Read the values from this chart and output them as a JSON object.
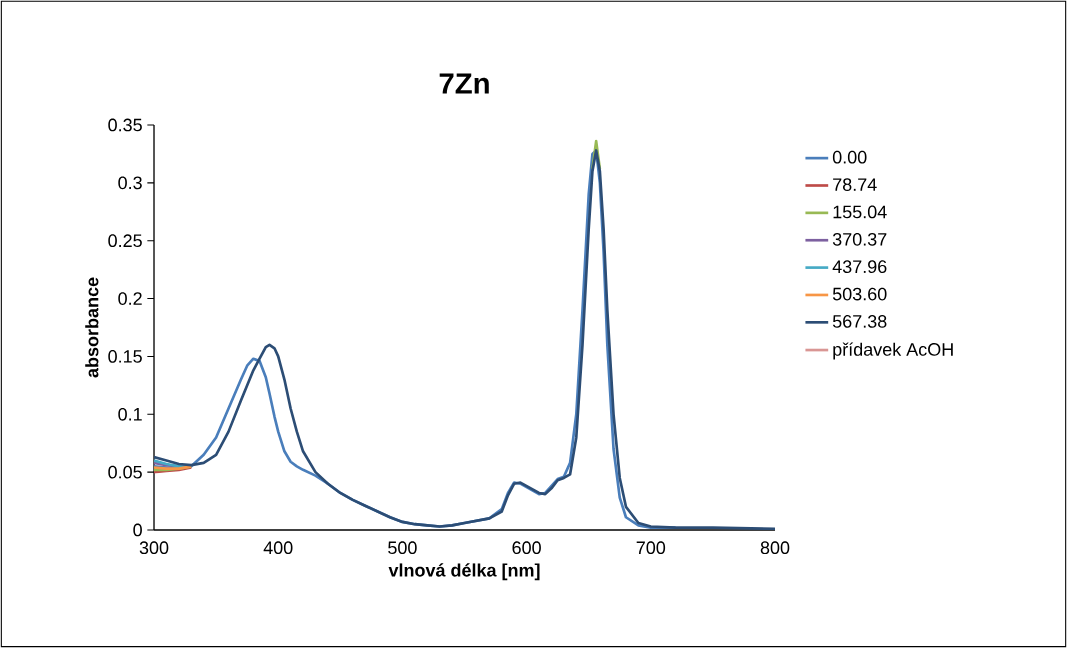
{
  "chart_data": {
    "type": "line",
    "title": "7Zn",
    "xlabel": "vlnová délka [nm]",
    "ylabel": "absorbance",
    "xlim": [
      300,
      800
    ],
    "ylim": [
      0,
      0.35
    ],
    "xticks": [
      300,
      400,
      500,
      600,
      700,
      800
    ],
    "yticks": [
      0,
      0.05,
      0.1,
      0.15,
      0.2,
      0.25,
      0.3,
      0.35
    ],
    "legend": "right",
    "x": [
      300,
      310,
      320,
      330,
      340,
      350,
      360,
      370,
      375,
      380,
      385,
      390,
      393,
      397,
      400,
      405,
      410,
      415,
      420,
      430,
      440,
      450,
      460,
      470,
      480,
      490,
      500,
      510,
      520,
      530,
      540,
      550,
      560,
      570,
      580,
      585,
      590,
      595,
      600,
      610,
      615,
      620,
      625,
      630,
      635,
      640,
      645,
      650,
      653,
      656,
      659,
      662,
      665,
      670,
      675,
      680,
      690,
      700,
      720,
      750,
      800
    ],
    "series": [
      {
        "name": "0.00",
        "color": "#4a7ebb",
        "values": [
          0.055,
          0.054,
          0.053,
          0.055,
          0.065,
          0.08,
          0.105,
          0.13,
          0.142,
          0.148,
          0.146,
          0.132,
          0.118,
          0.098,
          0.085,
          0.068,
          0.059,
          0.055,
          0.052,
          0.047,
          0.04,
          0.032,
          0.026,
          0.021,
          0.016,
          0.011,
          0.007,
          0.005,
          0.004,
          0.003,
          0.004,
          0.006,
          0.008,
          0.01,
          0.018,
          0.032,
          0.041,
          0.04,
          0.037,
          0.031,
          0.032,
          0.038,
          0.044,
          0.046,
          0.058,
          0.1,
          0.19,
          0.29,
          0.325,
          0.328,
          0.3,
          0.24,
          0.16,
          0.07,
          0.028,
          0.011,
          0.004,
          0.002,
          0.002,
          null,
          null
        ]
      },
      {
        "name": "78.74",
        "color": "#be4b48",
        "values": [
          0.05,
          0.051,
          0.052,
          0.054,
          null,
          null,
          null,
          null,
          null,
          null,
          null,
          null,
          null,
          null,
          null,
          null,
          null,
          null,
          null,
          null,
          null,
          null,
          null,
          null,
          null,
          null,
          null,
          null,
          null,
          null,
          null,
          null,
          null,
          null,
          null,
          null,
          null,
          null,
          null,
          null,
          null,
          null,
          null,
          null,
          null,
          null,
          null,
          null,
          null,
          null,
          null,
          null,
          null,
          null,
          null,
          null,
          null,
          null,
          null,
          null,
          null
        ]
      },
      {
        "name": "155.04",
        "color": "#98b954",
        "values": [
          0.052,
          0.052,
          0.053,
          0.055,
          null,
          null,
          null,
          null,
          null,
          null,
          null,
          null,
          null,
          null,
          null,
          null,
          null,
          null,
          null,
          null,
          null,
          null,
          null,
          null,
          null,
          null,
          null,
          null,
          null,
          null,
          null,
          null,
          null,
          null,
          null,
          null,
          null,
          null,
          null,
          null,
          null,
          null,
          null,
          null,
          null,
          null,
          null,
          null,
          0.312,
          0.336,
          0.312,
          null,
          null,
          null,
          null,
          null,
          null,
          null,
          null,
          null,
          null
        ]
      },
      {
        "name": "370.37",
        "color": "#7d60a0",
        "values": [
          0.058,
          0.056,
          0.055,
          0.055,
          null,
          null,
          null,
          null,
          null,
          null,
          null,
          null,
          null,
          null,
          null,
          null,
          null,
          null,
          null,
          null,
          null,
          null,
          null,
          null,
          null,
          null,
          null,
          null,
          null,
          null,
          null,
          null,
          null,
          null,
          null,
          null,
          null,
          null,
          null,
          null,
          null,
          null,
          null,
          null,
          null,
          null,
          null,
          null,
          null,
          null,
          null,
          null,
          null,
          null,
          null,
          null,
          null,
          null,
          null,
          null,
          null
        ]
      },
      {
        "name": "437.96",
        "color": "#46aac5",
        "values": [
          0.06,
          0.057,
          0.055,
          0.055,
          null,
          null,
          null,
          null,
          null,
          null,
          null,
          null,
          null,
          null,
          null,
          null,
          null,
          null,
          null,
          null,
          null,
          null,
          null,
          null,
          null,
          null,
          null,
          null,
          null,
          null,
          null,
          null,
          null,
          null,
          null,
          null,
          null,
          null,
          null,
          null,
          null,
          null,
          null,
          null,
          null,
          null,
          null,
          null,
          null,
          null,
          null,
          null,
          null,
          null,
          null,
          null,
          null,
          null,
          null,
          null,
          null
        ]
      },
      {
        "name": "503.60",
        "color": "#f79646",
        "values": [
          0.054,
          0.053,
          0.053,
          0.055,
          null,
          null,
          null,
          null,
          null,
          null,
          null,
          null,
          null,
          null,
          null,
          null,
          null,
          null,
          null,
          null,
          null,
          null,
          null,
          null,
          null,
          null,
          null,
          null,
          null,
          null,
          null,
          null,
          null,
          null,
          null,
          null,
          null,
          null,
          null,
          null,
          null,
          null,
          null,
          null,
          null,
          null,
          null,
          null,
          null,
          null,
          null,
          null,
          null,
          null,
          null,
          null,
          null,
          null,
          null,
          null,
          null
        ]
      },
      {
        "name": "567.38",
        "color": "#2c4d75",
        "values": [
          0.063,
          0.06,
          0.057,
          0.056,
          0.058,
          0.065,
          0.085,
          0.112,
          0.125,
          0.138,
          0.148,
          0.158,
          0.16,
          0.157,
          0.15,
          0.13,
          0.105,
          0.085,
          0.068,
          0.05,
          0.04,
          0.032,
          0.026,
          0.021,
          0.016,
          0.011,
          0.007,
          0.005,
          0.004,
          0.003,
          0.004,
          0.006,
          0.008,
          0.01,
          0.016,
          0.03,
          0.04,
          0.041,
          0.038,
          0.032,
          0.031,
          0.036,
          0.043,
          0.045,
          0.048,
          0.08,
          0.16,
          0.26,
          0.31,
          0.328,
          0.31,
          0.26,
          0.19,
          0.1,
          0.045,
          0.02,
          0.006,
          0.003,
          0.002,
          0.002,
          0.001
        ]
      },
      {
        "name": "přídavek AcOH",
        "color": "#d99694",
        "values": [
          null,
          null,
          null,
          null,
          null,
          null,
          null,
          null,
          null,
          null,
          null,
          null,
          null,
          null,
          null,
          null,
          null,
          null,
          null,
          null,
          null,
          null,
          null,
          null,
          null,
          null,
          null,
          null,
          null,
          null,
          null,
          null,
          null,
          null,
          null,
          null,
          null,
          null,
          null,
          null,
          null,
          null,
          null,
          null,
          null,
          null,
          null,
          null,
          null,
          null,
          null,
          null,
          null,
          null,
          null,
          null,
          null,
          null,
          null,
          null,
          null
        ]
      }
    ]
  }
}
